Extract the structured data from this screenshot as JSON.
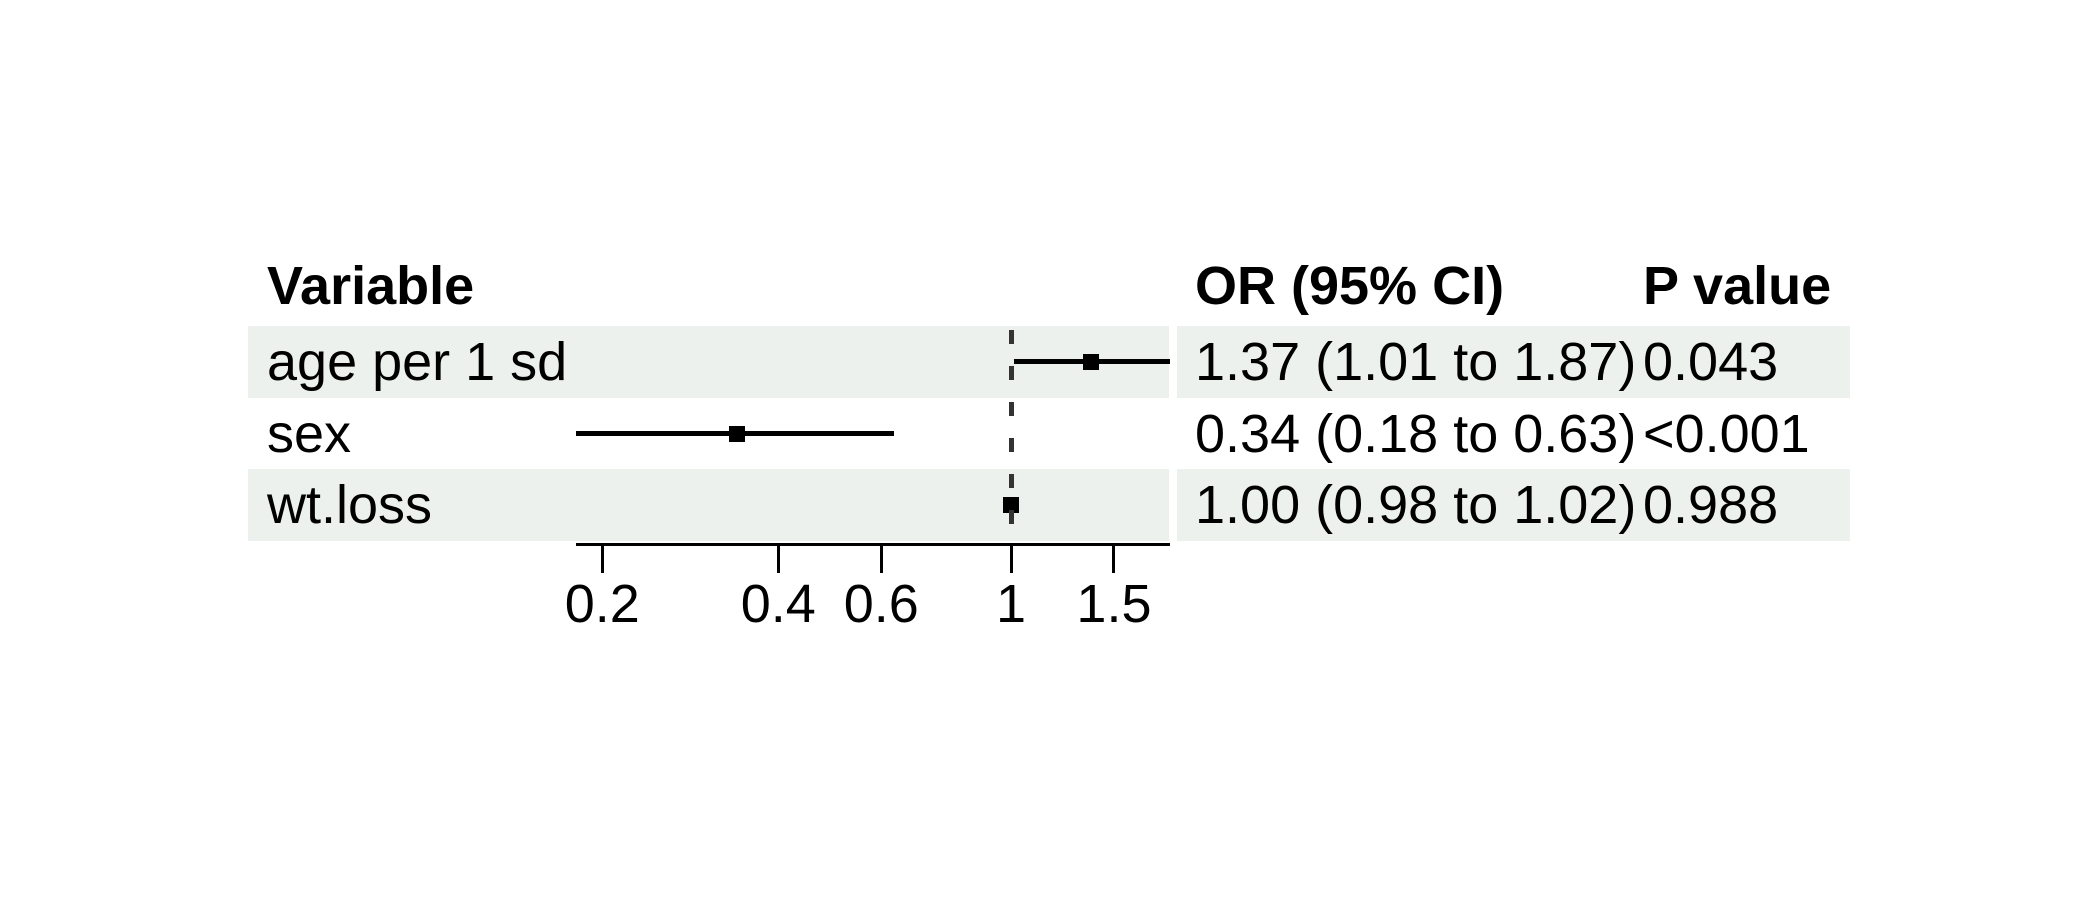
{
  "chart_data": {
    "type": "forest",
    "title": "",
    "columns": [
      "Variable",
      "OR (95% CI)",
      "P value"
    ],
    "rows": [
      {
        "variable": "age per 1 sd",
        "or": 1.37,
        "ci_low": 1.01,
        "ci_high": 1.87,
        "or_ci_label": "1.37 (1.01 to 1.87)",
        "p_value": "0.043",
        "shaded": true
      },
      {
        "variable": "sex",
        "or": 0.34,
        "ci_low": 0.18,
        "ci_high": 0.63,
        "or_ci_label": "0.34 (0.18 to 0.63)",
        "p_value": "<0.001",
        "shaded": false
      },
      {
        "variable": "wt.loss",
        "or": 1.0,
        "ci_low": 0.98,
        "ci_high": 1.02,
        "or_ci_label": "1.00 (0.98 to 1.02)",
        "p_value": "0.988",
        "shaded": true
      }
    ],
    "x_scale": "log",
    "x_ticks": [
      "0.2",
      "0.4",
      "0.6",
      "1",
      "1.5"
    ],
    "x_range": [
      0.18,
      1.87
    ],
    "reference_line": 1,
    "band_color": "#edf1ee",
    "line_color": "#000000",
    "marker_color": "#000000",
    "ref_line_color": "#333333"
  }
}
